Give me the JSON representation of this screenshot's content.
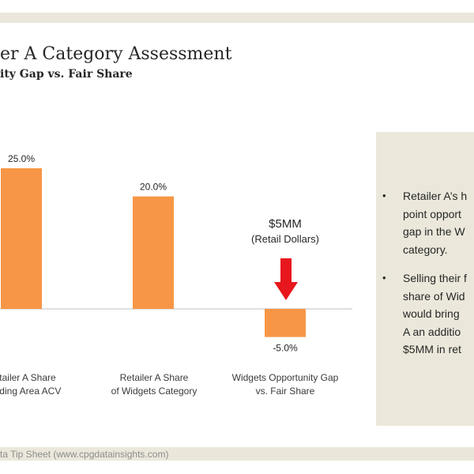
{
  "title": "er A Category Assessment",
  "subtitle": "ity Gap vs. Fair Share",
  "footer": "ta Tip Sheet (www.cpgdatainsights.com)",
  "chart_data": {
    "type": "bar",
    "categories": [
      [
        "tailer A Share",
        "ading Area ACV"
      ],
      [
        "Retailer A Share",
        "of Widgets Category"
      ],
      [
        "Widgets Opportunity Gap",
        "vs. Fair Share"
      ]
    ],
    "values": [
      25.0,
      20.0,
      -5.0
    ],
    "data_labels": [
      "25.0%",
      "20.0%",
      "-5.0%"
    ],
    "bar_color": "#f79646",
    "axis_color": "#bfbfbf",
    "ylim": [
      -6,
      27
    ],
    "annotation": {
      "main": "$5MM",
      "sub": "(Retail Dollars)",
      "arrow_color": "#e8171d"
    }
  },
  "panel": {
    "bullets": [
      [
        "Retailer A’s h",
        "point opport",
        "gap in the W",
        "category."
      ],
      [
        "Selling their f",
        "share of Wid",
        "would bring",
        "A an additio",
        "$5MM in ret"
      ]
    ]
  }
}
